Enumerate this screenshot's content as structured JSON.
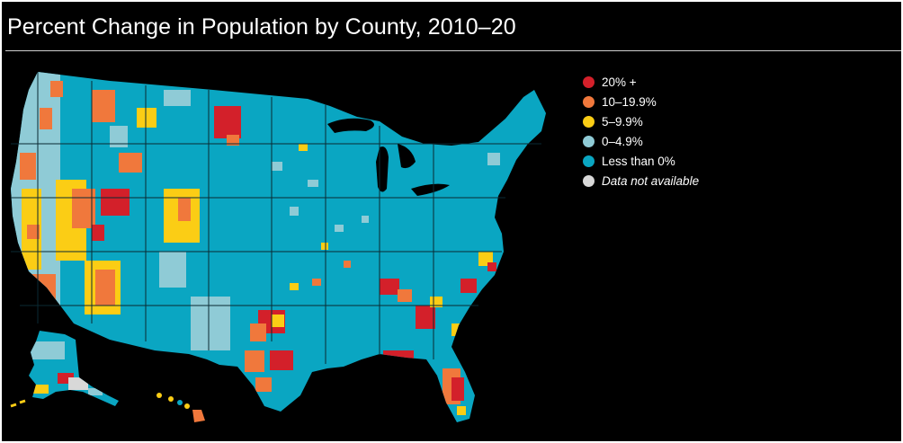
{
  "title": "Percent Change in Population by County, 2010–20",
  "colors": {
    "background": "#000000",
    "text": "#ffffff",
    "rule": "#cfcfcf",
    "state_border": "#0a2a33"
  },
  "legend": [
    {
      "label": "20% +",
      "color": "#d3202a",
      "italic": false
    },
    {
      "label": "10–19.9%",
      "color": "#f0783c",
      "italic": false
    },
    {
      "label": "5–9.9%",
      "color": "#fbcd15",
      "italic": false
    },
    {
      "label": "0–4.9%",
      "color": "#8fcbd6",
      "italic": false
    },
    {
      "label": "Less than 0%",
      "color": "#0aa6c2",
      "italic": false
    },
    {
      "label": "Data not available",
      "color": "#d8d8d8",
      "italic": true
    }
  ]
}
